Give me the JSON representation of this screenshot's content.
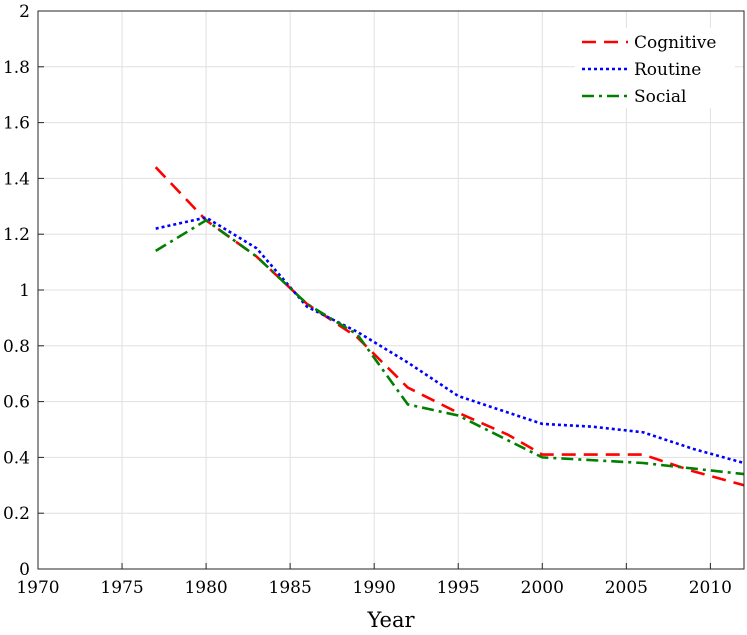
{
  "chart_data": {
    "type": "line",
    "title": "",
    "xlabel": "Year",
    "ylabel": "",
    "xlim": [
      1970,
      2012
    ],
    "ylim": [
      0,
      2
    ],
    "xticks": [
      1970,
      1975,
      1980,
      1985,
      1990,
      1995,
      2000,
      2005,
      2010
    ],
    "yticks": [
      0,
      0.2,
      0.4,
      0.6,
      0.8,
      1,
      1.2,
      1.4,
      1.6,
      1.8,
      2
    ],
    "xtick_labels": [
      "1970",
      "1975",
      "1980",
      "1985",
      "1990",
      "1995",
      "2000",
      "2005",
      "2010"
    ],
    "ytick_labels": [
      "0",
      "0.2",
      "0.4",
      "0.6",
      "0.8",
      "1",
      "1.2",
      "1.4",
      "1.6",
      "1.8",
      "2"
    ],
    "grid": true,
    "legend_position": "top-right",
    "series": [
      {
        "name": "Cognitive",
        "color": "#ff0000",
        "style": "dashed",
        "x": [
          1977,
          1980,
          1983,
          1986,
          1989,
          1992,
          1995,
          1998,
          2000,
          2003,
          2006,
          2009,
          2012
        ],
        "y": [
          1.44,
          1.25,
          1.12,
          0.95,
          0.83,
          0.65,
          0.56,
          0.48,
          0.41,
          0.41,
          0.41,
          0.35,
          0.3
        ]
      },
      {
        "name": "Routine",
        "color": "#0000ff",
        "style": "dotted",
        "x": [
          1977,
          1980,
          1983,
          1986,
          1989,
          1992,
          1995,
          1998,
          2000,
          2003,
          2006,
          2009,
          2012
        ],
        "y": [
          1.22,
          1.26,
          1.15,
          0.94,
          0.85,
          0.74,
          0.62,
          0.56,
          0.52,
          0.51,
          0.49,
          0.43,
          0.38
        ]
      },
      {
        "name": "Social",
        "color": "#008000",
        "style": "dash-dot",
        "x": [
          1977,
          1980,
          1983,
          1986,
          1989,
          1992,
          1995,
          1998,
          2000,
          2003,
          2006,
          2009,
          2012
        ],
        "y": [
          1.14,
          1.25,
          1.12,
          0.95,
          0.84,
          0.59,
          0.55,
          0.46,
          0.4,
          0.39,
          0.38,
          0.36,
          0.34
        ]
      }
    ]
  }
}
